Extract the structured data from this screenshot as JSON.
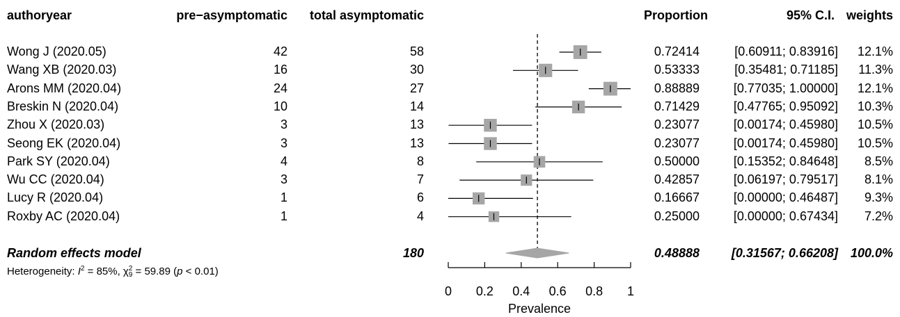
{
  "headers": {
    "study": "authoryear",
    "events": "pre−asymptomatic",
    "total": "total asymptomatic",
    "proportion": "Proportion",
    "ci": "95% C.I.",
    "weights": "weights"
  },
  "studies": [
    {
      "study": "Wong J (2020.05)",
      "events": "42",
      "total": "58",
      "proportion": "0.72414",
      "ci": "[0.60911; 0.83916]",
      "weight": "12.1%"
    },
    {
      "study": "Wang XB (2020.03)",
      "events": "16",
      "total": "30",
      "proportion": "0.53333",
      "ci": "[0.35481; 0.71185]",
      "weight": "11.3%"
    },
    {
      "study": "Arons MM (2020.04)",
      "events": "24",
      "total": "27",
      "proportion": "0.88889",
      "ci": "[0.77035; 1.00000]",
      "weight": "12.1%"
    },
    {
      "study": "Breskin N (2020.04)",
      "events": "10",
      "total": "14",
      "proportion": "0.71429",
      "ci": "[0.47765; 0.95092]",
      "weight": "10.3%"
    },
    {
      "study": "Zhou X (2020.03)",
      "events": "3",
      "total": "13",
      "proportion": "0.23077",
      "ci": "[0.00174; 0.45980]",
      "weight": "10.5%"
    },
    {
      "study": "Seong EK (2020.04)",
      "events": "3",
      "total": "13",
      "proportion": "0.23077",
      "ci": "[0.00174; 0.45980]",
      "weight": "10.5%"
    },
    {
      "study": "Park SY (2020.04)",
      "events": "4",
      "total": "8",
      "proportion": "0.50000",
      "ci": "[0.15352; 0.84648]",
      "weight": "8.5%"
    },
    {
      "study": "Wu CC (2020.04)",
      "events": "3",
      "total": "7",
      "proportion": "0.42857",
      "ci": "[0.06197; 0.79517]",
      "weight": "8.1%"
    },
    {
      "study": "Lucy R (2020.04)",
      "events": "1",
      "total": "6",
      "proportion": "0.16667",
      "ci": "[0.00000; 0.46487]",
      "weight": "9.3%"
    },
    {
      "study": "Roxby AC (2020.04)",
      "events": "1",
      "total": "4",
      "proportion": "0.25000",
      "ci": "[0.00000; 0.67434]",
      "weight": "7.2%"
    }
  ],
  "summary": {
    "label": "Random effects model",
    "total": "180",
    "proportion": "0.48888",
    "ci": "[0.31567; 0.66208]",
    "weight": "100.0%"
  },
  "heterogeneity": {
    "prefix": "Heterogeneity: ",
    "i2_label": "I",
    "i2_sup": "2",
    "i2_value": " = 85%, ",
    "chi": "χ",
    "chi_sup": "2",
    "chi_sub": "9",
    "chi_value": " = 59.89 (",
    "p": "p",
    "p_value": " < 0.01)"
  },
  "chart_data": {
    "type": "forest",
    "xlabel": "Prevalence",
    "xlim": [
      0,
      1
    ],
    "xticks": [
      0,
      0.2,
      0.4,
      0.6,
      0.8,
      1
    ],
    "xtick_labels": [
      "0",
      "0.2",
      "0.4",
      "0.6",
      "0.8",
      "1"
    ],
    "reference_line": 0.48888,
    "box_color": "#a6a6a6",
    "diamond_color": "#a6a6a6",
    "studies": [
      {
        "name": "Wong J (2020.05)",
        "estimate": 0.72414,
        "lower": 0.60911,
        "upper": 0.83916,
        "weight": 12.1
      },
      {
        "name": "Wang XB (2020.03)",
        "estimate": 0.53333,
        "lower": 0.35481,
        "upper": 0.71185,
        "weight": 11.3
      },
      {
        "name": "Arons MM (2020.04)",
        "estimate": 0.88889,
        "lower": 0.77035,
        "upper": 1.0,
        "weight": 12.1
      },
      {
        "name": "Breskin N (2020.04)",
        "estimate": 0.71429,
        "lower": 0.47765,
        "upper": 0.95092,
        "weight": 10.3
      },
      {
        "name": "Zhou X (2020.03)",
        "estimate": 0.23077,
        "lower": 0.00174,
        "upper": 0.4598,
        "weight": 10.5
      },
      {
        "name": "Seong EK (2020.04)",
        "estimate": 0.23077,
        "lower": 0.00174,
        "upper": 0.4598,
        "weight": 10.5
      },
      {
        "name": "Park SY (2020.04)",
        "estimate": 0.5,
        "lower": 0.15352,
        "upper": 0.84648,
        "weight": 8.5
      },
      {
        "name": "Wu CC (2020.04)",
        "estimate": 0.42857,
        "lower": 0.06197,
        "upper": 0.79517,
        "weight": 8.1
      },
      {
        "name": "Lucy R (2020.04)",
        "estimate": 0.16667,
        "lower": 0.0,
        "upper": 0.46487,
        "weight": 9.3
      },
      {
        "name": "Roxby AC (2020.04)",
        "estimate": 0.25,
        "lower": 0.0,
        "upper": 0.67434,
        "weight": 7.2
      }
    ],
    "summary": {
      "name": "Random effects model",
      "estimate": 0.48888,
      "lower": 0.31567,
      "upper": 0.66208
    }
  }
}
